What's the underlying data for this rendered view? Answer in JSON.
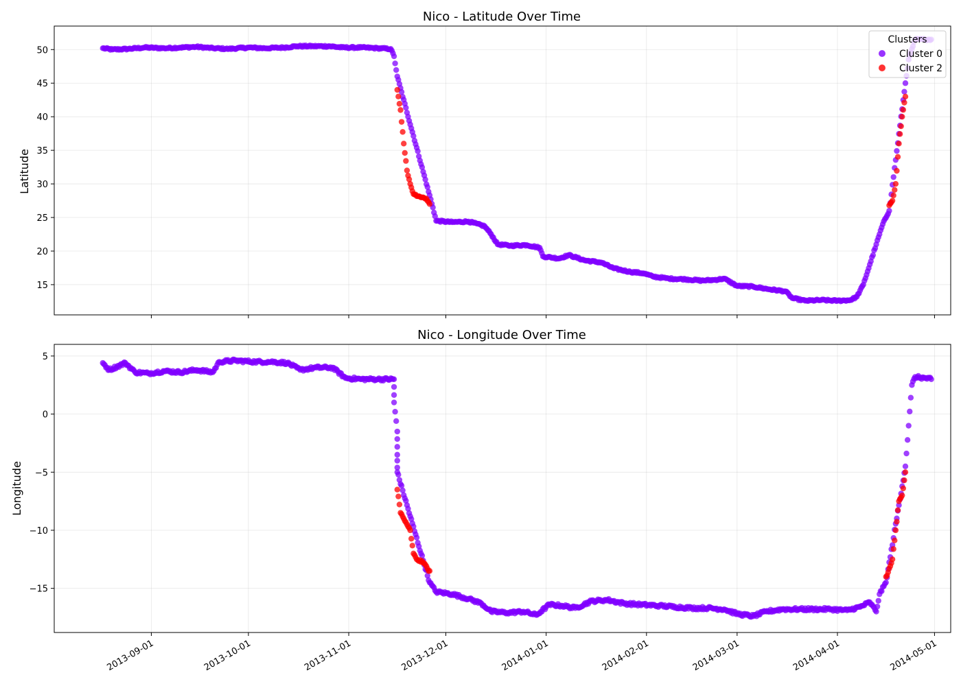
{
  "chart_data": [
    {
      "type": "scatter",
      "title": "Nico - Latitude Over Time",
      "xlabel": "",
      "ylabel": "Latitude",
      "xlim": [
        "2013-08-02",
        "2014-05-06"
      ],
      "ylim": [
        10.5,
        53.5
      ],
      "yticks": [
        15,
        20,
        25,
        30,
        35,
        40,
        45,
        50
      ],
      "grid": true,
      "legend": {
        "title": "Clusters",
        "placement": "top-right",
        "entries": [
          {
            "label": "Cluster 0",
            "color": "#8000ff"
          },
          {
            "label": "Cluster 2",
            "color": "#ff0000"
          }
        ]
      },
      "series": [
        {
          "name": "Cluster 0",
          "color": "#8000ff",
          "points": [
            [
              "2013-08-17",
              50.2
            ],
            [
              "2013-08-20",
              50.0
            ],
            [
              "2013-08-25",
              50.1
            ],
            [
              "2013-08-30",
              50.3
            ],
            [
              "2013-09-05",
              50.2
            ],
            [
              "2013-09-10",
              50.3
            ],
            [
              "2013-09-15",
              50.4
            ],
            [
              "2013-09-20",
              50.2
            ],
            [
              "2013-09-25",
              50.1
            ],
            [
              "2013-10-01",
              50.3
            ],
            [
              "2013-10-06",
              50.2
            ],
            [
              "2013-10-12",
              50.3
            ],
            [
              "2013-10-16",
              50.5
            ],
            [
              "2013-10-21",
              50.5
            ],
            [
              "2013-10-26",
              50.5
            ],
            [
              "2013-10-30",
              50.3
            ],
            [
              "2013-11-05",
              50.3
            ],
            [
              "2013-11-10",
              50.2
            ],
            [
              "2013-11-14",
              50.1
            ],
            [
              "2013-11-15",
              49.0
            ],
            [
              "2013-11-16",
              46.0
            ],
            [
              "2013-11-27",
              26.5
            ],
            [
              "2013-11-28",
              24.5
            ],
            [
              "2013-12-03",
              24.3
            ],
            [
              "2013-12-08",
              24.4
            ],
            [
              "2013-12-13",
              23.7
            ],
            [
              "2013-12-15",
              22.5
            ],
            [
              "2013-12-17",
              21.0
            ],
            [
              "2013-12-21",
              20.8
            ],
            [
              "2013-12-26",
              20.9
            ],
            [
              "2013-12-30",
              20.5
            ],
            [
              "2013-12-31",
              19.2
            ],
            [
              "2014-01-05",
              18.9
            ],
            [
              "2014-01-08",
              19.4
            ],
            [
              "2014-01-13",
              18.6
            ],
            [
              "2014-01-18",
              18.3
            ],
            [
              "2014-01-22",
              17.4
            ],
            [
              "2014-01-27",
              16.9
            ],
            [
              "2014-01-31",
              16.7
            ],
            [
              "2014-02-03",
              16.2
            ],
            [
              "2014-02-08",
              15.9
            ],
            [
              "2014-02-13",
              15.8
            ],
            [
              "2014-02-18",
              15.6
            ],
            [
              "2014-02-22",
              15.7
            ],
            [
              "2014-02-25",
              15.9
            ],
            [
              "2014-03-01",
              14.8
            ],
            [
              "2014-03-06",
              14.7
            ],
            [
              "2014-03-11",
              14.3
            ],
            [
              "2014-03-16",
              14.0
            ],
            [
              "2014-03-18",
              13.0
            ],
            [
              "2014-03-22",
              12.6
            ],
            [
              "2014-03-27",
              12.7
            ],
            [
              "2014-04-01",
              12.6
            ],
            [
              "2014-04-05",
              12.7
            ],
            [
              "2014-04-07",
              13.2
            ],
            [
              "2014-04-09",
              15.0
            ],
            [
              "2014-04-11",
              18.0
            ],
            [
              "2014-04-13",
              21.0
            ],
            [
              "2014-04-15",
              24.0
            ],
            [
              "2014-04-17",
              26.0
            ],
            [
              "2014-04-22",
              45.0
            ],
            [
              "2014-04-23",
              48.5
            ],
            [
              "2014-04-25",
              51.5
            ],
            [
              "2014-04-28",
              51.5
            ],
            [
              "2014-04-30",
              51.5
            ]
          ]
        },
        {
          "name": "Cluster 2",
          "color": "#ff0000",
          "points": [
            [
              "2013-11-16",
              44.0
            ],
            [
              "2013-11-17",
              41.0
            ],
            [
              "2013-11-18",
              36.0
            ],
            [
              "2013-11-19",
              32.0
            ],
            [
              "2013-11-20",
              30.0
            ],
            [
              "2013-11-21",
              28.5
            ],
            [
              "2013-11-23",
              28.1
            ],
            [
              "2013-11-25",
              27.8
            ],
            [
              "2013-11-26",
              27.0
            ],
            [
              "2014-04-17",
              26.8
            ],
            [
              "2014-04-18",
              27.5
            ],
            [
              "2014-04-19",
              30.0
            ],
            [
              "2014-04-20",
              36.0
            ],
            [
              "2014-04-21",
              40.0
            ],
            [
              "2014-04-22",
              43.0
            ]
          ]
        }
      ]
    },
    {
      "type": "scatter",
      "title": "Nico - Longitude Over Time",
      "xlabel": "",
      "ylabel": "Longitude",
      "xlim": [
        "2013-08-02",
        "2014-05-06"
      ],
      "ylim": [
        -18.8,
        6.0
      ],
      "yticks": [
        -15,
        -10,
        -5,
        0,
        5
      ],
      "xticks": [
        "2013-09-01",
        "2013-10-01",
        "2013-11-01",
        "2013-12-01",
        "2014-01-01",
        "2014-02-01",
        "2014-03-01",
        "2014-04-01",
        "2014-05-01"
      ],
      "grid": true,
      "series": [
        {
          "name": "Cluster 0",
          "color": "#8000ff",
          "points": [
            [
              "2013-08-17",
              4.4
            ],
            [
              "2013-08-19",
              3.8
            ],
            [
              "2013-08-24",
              4.4
            ],
            [
              "2013-08-27",
              3.6
            ],
            [
              "2013-08-31",
              3.5
            ],
            [
              "2013-09-05",
              3.7
            ],
            [
              "2013-09-10",
              3.6
            ],
            [
              "2013-09-15",
              3.8
            ],
            [
              "2013-09-20",
              3.6
            ],
            [
              "2013-09-22",
              4.5
            ],
            [
              "2013-09-27",
              4.6
            ],
            [
              "2013-10-03",
              4.5
            ],
            [
              "2013-10-08",
              4.5
            ],
            [
              "2013-10-13",
              4.4
            ],
            [
              "2013-10-17",
              3.8
            ],
            [
              "2013-10-22",
              4.0
            ],
            [
              "2013-10-27",
              4.0
            ],
            [
              "2013-10-31",
              3.1
            ],
            [
              "2013-11-05",
              3.0
            ],
            [
              "2013-11-10",
              3.0
            ],
            [
              "2013-11-15",
              3.0
            ],
            [
              "2013-11-15",
              1.0
            ],
            [
              "2013-11-16",
              -1.5
            ],
            [
              "2013-11-16",
              -3.5
            ],
            [
              "2013-11-16",
              -5.0
            ],
            [
              "2013-11-26",
              -14.5
            ],
            [
              "2013-11-28",
              -15.3
            ],
            [
              "2013-12-03",
              -15.5
            ],
            [
              "2013-12-08",
              -15.9
            ],
            [
              "2013-12-12",
              -16.3
            ],
            [
              "2013-12-15",
              -17.0
            ],
            [
              "2013-12-20",
              -17.1
            ],
            [
              "2013-12-25",
              -17.0
            ],
            [
              "2013-12-29",
              -17.3
            ],
            [
              "2014-01-02",
              -16.4
            ],
            [
              "2014-01-06",
              -16.5
            ],
            [
              "2014-01-10",
              -16.7
            ],
            [
              "2014-01-15",
              -16.1
            ],
            [
              "2014-01-20",
              -16.0
            ],
            [
              "2014-01-25",
              -16.3
            ],
            [
              "2014-01-30",
              -16.4
            ],
            [
              "2014-02-05",
              -16.5
            ],
            [
              "2014-02-10",
              -16.6
            ],
            [
              "2014-02-15",
              -16.7
            ],
            [
              "2014-02-20",
              -16.7
            ],
            [
              "2014-02-25",
              -16.8
            ],
            [
              "2014-03-01",
              -17.2
            ],
            [
              "2014-03-06",
              -17.4
            ],
            [
              "2014-03-10",
              -17.0
            ],
            [
              "2014-03-15",
              -16.8
            ],
            [
              "2014-03-20",
              -16.8
            ],
            [
              "2014-03-25",
              -16.8
            ],
            [
              "2014-03-30",
              -16.8
            ],
            [
              "2014-04-04",
              -16.9
            ],
            [
              "2014-04-08",
              -16.6
            ],
            [
              "2014-04-11",
              -16.2
            ],
            [
              "2014-04-13",
              -17.0
            ],
            [
              "2014-04-14",
              -15.5
            ],
            [
              "2014-04-16",
              -14.5
            ],
            [
              "2014-04-22",
              -4.5
            ],
            [
              "2014-04-23",
              -1.0
            ],
            [
              "2014-04-24",
              2.5
            ],
            [
              "2014-04-25",
              3.2
            ],
            [
              "2014-04-28",
              3.1
            ],
            [
              "2014-04-30",
              3.0
            ]
          ]
        },
        {
          "name": "Cluster 2",
          "color": "#ff0000",
          "points": [
            [
              "2013-11-16",
              -6.5
            ],
            [
              "2013-11-17",
              -8.5
            ],
            [
              "2013-11-18",
              -9.0
            ],
            [
              "2013-11-19",
              -9.5
            ],
            [
              "2013-11-20",
              -10.0
            ],
            [
              "2013-11-21",
              -12.0
            ],
            [
              "2013-11-22",
              -12.5
            ],
            [
              "2013-11-24",
              -12.8
            ],
            [
              "2013-11-26",
              -13.5
            ],
            [
              "2014-04-16",
              -14.0
            ],
            [
              "2014-04-17",
              -13.3
            ],
            [
              "2014-04-18",
              -12.5
            ],
            [
              "2014-04-19",
              -10.0
            ],
            [
              "2014-04-20",
              -7.5
            ],
            [
              "2014-04-21",
              -7.0
            ],
            [
              "2014-04-22",
              -5.0
            ]
          ]
        }
      ]
    }
  ]
}
